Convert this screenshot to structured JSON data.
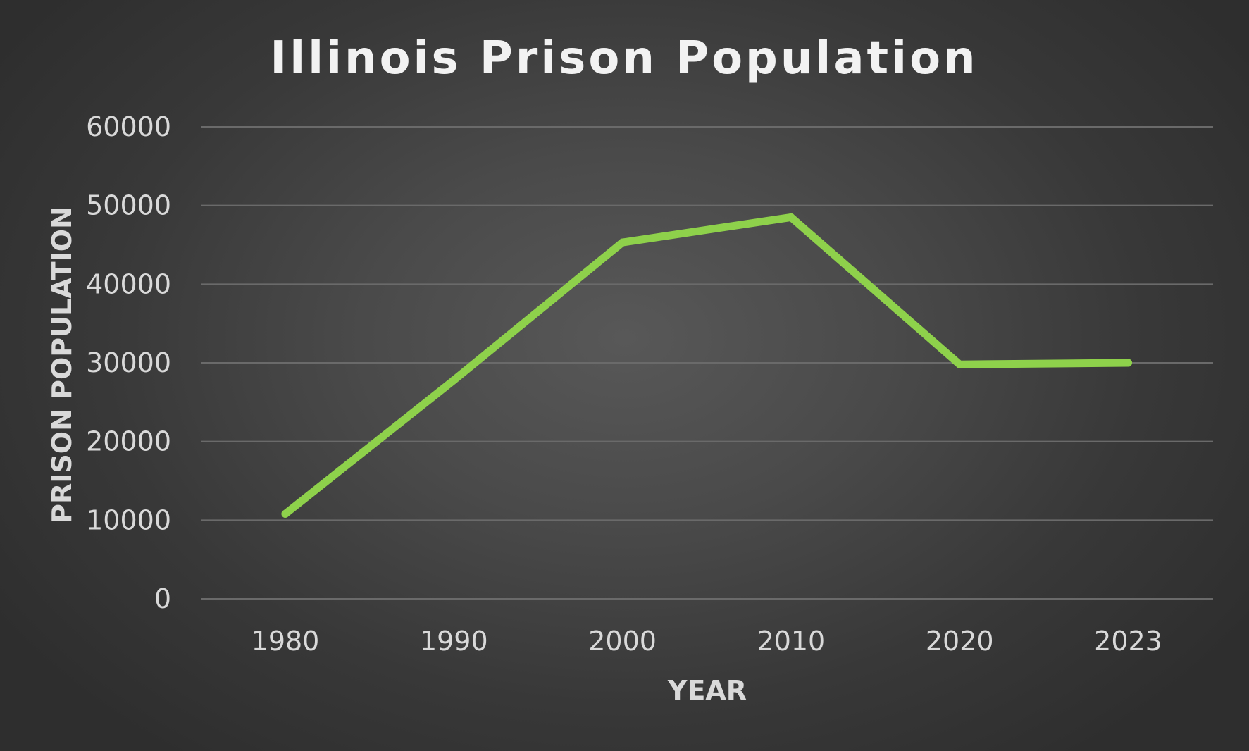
{
  "chart_data": {
    "type": "line",
    "title": "Illinois Prison Population",
    "xlabel": "YEAR",
    "ylabel": "PRISON POPULATION",
    "categories": [
      "1980",
      "1990",
      "2000",
      "2010",
      "2020",
      "2023"
    ],
    "series": [
      {
        "values": [
          10800,
          27800,
          45300,
          48500,
          29800,
          30000
        ],
        "color": "#8ed14b"
      }
    ],
    "ylim": [
      0,
      60000
    ],
    "yticks": [
      0,
      10000,
      20000,
      30000,
      40000,
      50000,
      60000
    ],
    "grid": true,
    "legend": "none"
  }
}
